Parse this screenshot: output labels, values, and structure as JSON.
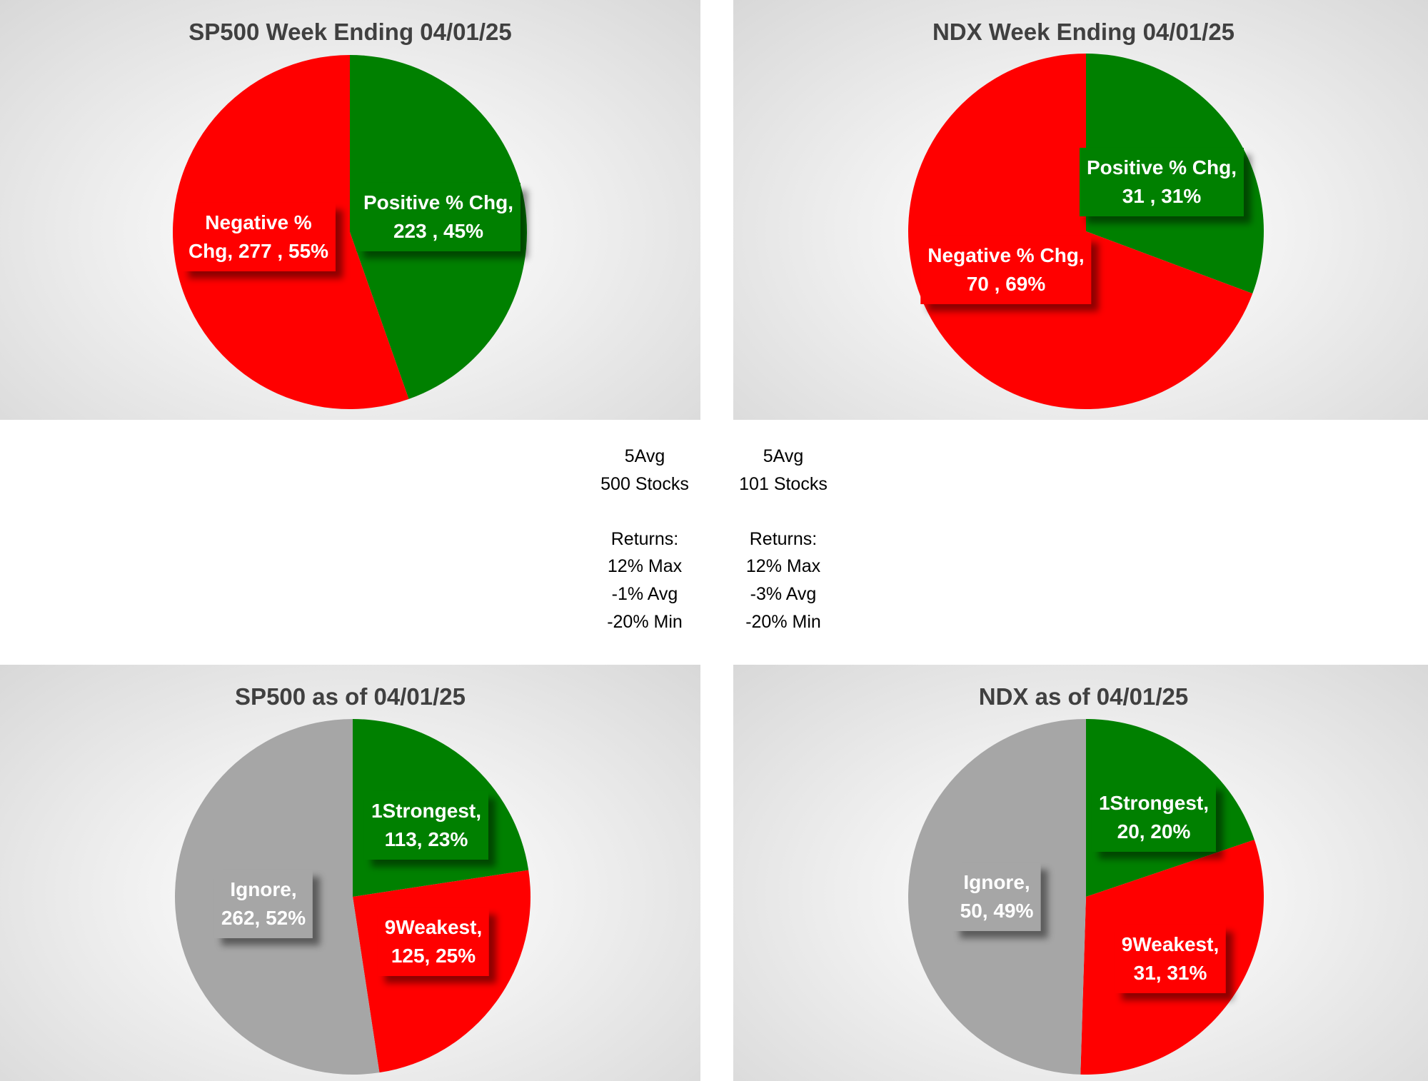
{
  "colors": {
    "positive": "#008000",
    "negative": "#ff0000",
    "ignore": "#a6a6a6",
    "title_text": "#404040",
    "label_text": "#ffffff"
  },
  "charts": [
    {
      "title": "SP500 Week Ending 04/01/25",
      "slices": [
        {
          "name": "Positive % Chg",
          "line1": "Positive % Chg,",
          "line2": "223 , 45%",
          "value": 223,
          "percent": 45,
          "color": "positive"
        },
        {
          "name": "Negative % Chg",
          "line1": "Negative %",
          "line2": "Chg,  277 , 55%",
          "value": 277,
          "percent": 55,
          "color": "negative"
        }
      ]
    },
    {
      "title": "NDX Week Ending 04/01/25",
      "slices": [
        {
          "name": "Positive % Chg",
          "line1": "Positive % Chg,",
          "line2": "31 , 31%",
          "value": 31,
          "percent": 31,
          "color": "positive"
        },
        {
          "name": "Negative % Chg",
          "line1": "Negative % Chg,",
          "line2": "70 , 69%",
          "value": 70,
          "percent": 69,
          "color": "negative"
        }
      ]
    },
    {
      "title": "SP500 as of 04/01/25",
      "slices": [
        {
          "name": "1Strongest",
          "line1": "1Strongest,",
          "line2": "113, 23%",
          "value": 113,
          "percent": 23,
          "color": "positive"
        },
        {
          "name": "9Weakest",
          "line1": "9Weakest,",
          "line2": "125, 25%",
          "value": 125,
          "percent": 25,
          "color": "negative"
        },
        {
          "name": "Ignore",
          "line1": "Ignore,",
          "line2": "262, 52%",
          "value": 262,
          "percent": 52,
          "color": "ignore"
        }
      ]
    },
    {
      "title": "NDX as of 04/01/25",
      "slices": [
        {
          "name": "1Strongest",
          "line1": "1Strongest,",
          "line2": "20, 20%",
          "value": 20,
          "percent": 20,
          "color": "positive"
        },
        {
          "name": "9Weakest",
          "line1": "9Weakest,",
          "line2": "31, 31%",
          "value": 31,
          "percent": 31,
          "color": "negative"
        },
        {
          "name": "Ignore",
          "line1": "Ignore,",
          "line2": "50, 49%",
          "value": 50,
          "percent": 49,
          "color": "ignore"
        }
      ]
    }
  ],
  "stats": [
    {
      "lines": [
        "5Avg",
        "500 Stocks",
        "",
        "Returns:",
        "12% Max",
        "-1% Avg",
        "-20% Min"
      ]
    },
    {
      "lines": [
        "5Avg",
        "101 Stocks",
        "",
        "Returns:",
        "12% Max",
        "-3% Avg",
        "-20% Min"
      ]
    }
  ],
  "chart_data": [
    {
      "type": "pie",
      "title": "SP500 Week Ending 04/01/25",
      "categories": [
        "Positive % Chg",
        "Negative % Chg"
      ],
      "values": [
        223,
        277
      ],
      "percents": [
        45,
        55
      ]
    },
    {
      "type": "pie",
      "title": "NDX Week Ending 04/01/25",
      "categories": [
        "Positive % Chg",
        "Negative % Chg"
      ],
      "values": [
        31,
        70
      ],
      "percents": [
        31,
        69
      ]
    },
    {
      "type": "pie",
      "title": "SP500 as of 04/01/25",
      "categories": [
        "1Strongest",
        "9Weakest",
        "Ignore"
      ],
      "values": [
        113,
        125,
        262
      ],
      "percents": [
        23,
        25,
        52
      ]
    },
    {
      "type": "pie",
      "title": "NDX as of 04/01/25",
      "categories": [
        "1Strongest",
        "9Weakest",
        "Ignore"
      ],
      "values": [
        20,
        31,
        50
      ],
      "percents": [
        20,
        31,
        49
      ]
    }
  ]
}
